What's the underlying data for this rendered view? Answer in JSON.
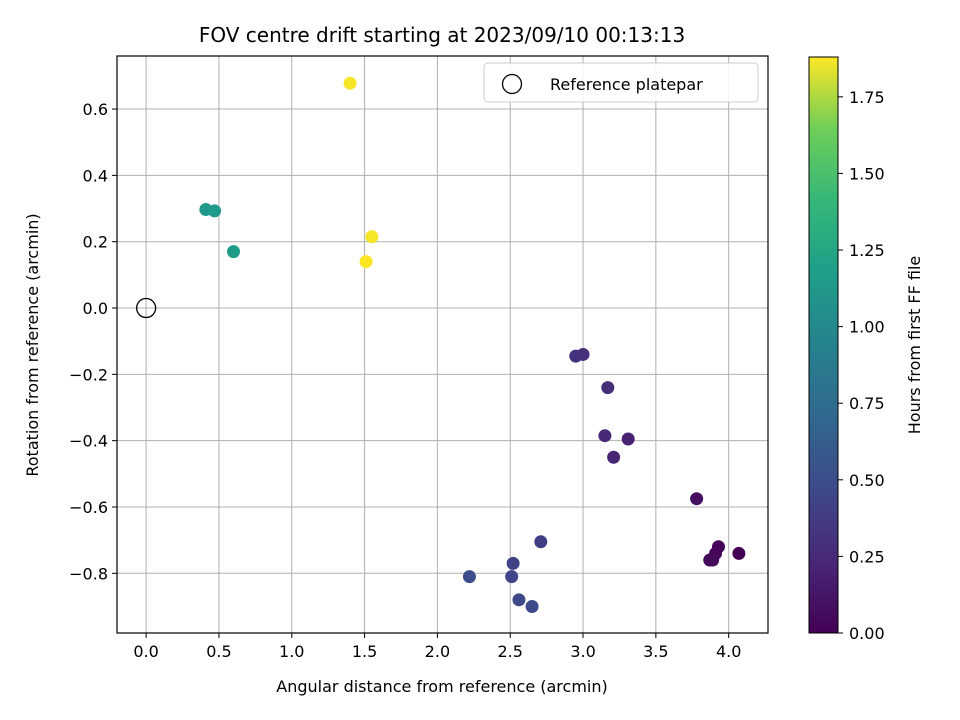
{
  "chart_data": {
    "type": "scatter",
    "title": "FOV centre drift starting at 2023/09/10 00:13:13",
    "xlabel": "Angular distance from reference (arcmin)",
    "ylabel": "Rotation from reference (arcmin)",
    "xlim": [
      -0.2,
      4.27
    ],
    "ylim": [
      -0.98,
      0.76
    ],
    "xticks": [
      0.0,
      0.5,
      1.0,
      1.5,
      2.0,
      2.5,
      3.0,
      3.5,
      4.0
    ],
    "xtick_labels": [
      "0.0",
      "0.5",
      "1.0",
      "1.5",
      "2.0",
      "2.5",
      "3.0",
      "3.5",
      "4.0"
    ],
    "yticks": [
      -0.8,
      -0.6,
      -0.4,
      -0.2,
      0.0,
      0.2,
      0.4,
      0.6
    ],
    "ytick_labels": [
      "−0.8",
      "−0.6",
      "−0.4",
      "−0.2",
      "0.0",
      "0.2",
      "0.4",
      "0.6"
    ],
    "grid": true,
    "legend": {
      "position": "top-right",
      "entries": [
        {
          "label": "Reference platepar",
          "marker": "open-circle",
          "color": "#000000"
        }
      ]
    },
    "reference_point": {
      "x": 0.0,
      "y": 0.0
    },
    "colorbar": {
      "label": "Hours from first FF file",
      "colormap": "viridis",
      "range": [
        0.0,
        1.88
      ],
      "ticks": [
        0.0,
        0.25,
        0.5,
        0.75,
        1.0,
        1.25,
        1.5,
        1.75
      ],
      "tick_labels": [
        "0.00",
        "0.25",
        "0.50",
        "0.75",
        "1.00",
        "1.25",
        "1.50",
        "1.75"
      ]
    },
    "points": [
      {
        "x": 4.07,
        "y": -0.74,
        "hours": 0.0
      },
      {
        "x": 3.93,
        "y": -0.72,
        "hours": 0.02
      },
      {
        "x": 3.91,
        "y": -0.74,
        "hours": 0.03
      },
      {
        "x": 3.89,
        "y": -0.76,
        "hours": 0.04
      },
      {
        "x": 3.87,
        "y": -0.76,
        "hours": 0.05
      },
      {
        "x": 3.78,
        "y": -0.575,
        "hours": 0.08
      },
      {
        "x": 3.31,
        "y": -0.395,
        "hours": 0.2
      },
      {
        "x": 3.21,
        "y": -0.45,
        "hours": 0.22
      },
      {
        "x": 3.15,
        "y": -0.385,
        "hours": 0.24
      },
      {
        "x": 3.17,
        "y": -0.24,
        "hours": 0.26
      },
      {
        "x": 3.0,
        "y": -0.14,
        "hours": 0.28
      },
      {
        "x": 2.95,
        "y": -0.145,
        "hours": 0.3
      },
      {
        "x": 2.71,
        "y": -0.705,
        "hours": 0.4
      },
      {
        "x": 2.52,
        "y": -0.77,
        "hours": 0.43
      },
      {
        "x": 2.51,
        "y": -0.81,
        "hours": 0.45
      },
      {
        "x": 2.56,
        "y": -0.88,
        "hours": 0.47
      },
      {
        "x": 2.65,
        "y": -0.9,
        "hours": 0.48
      },
      {
        "x": 2.22,
        "y": -0.81,
        "hours": 0.5
      },
      {
        "x": 0.41,
        "y": 0.297,
        "hours": 1.13
      },
      {
        "x": 0.47,
        "y": 0.293,
        "hours": 1.14
      },
      {
        "x": 0.6,
        "y": 0.17,
        "hours": 1.16
      },
      {
        "x": 1.4,
        "y": 0.678,
        "hours": 1.87
      },
      {
        "x": 1.55,
        "y": 0.215,
        "hours": 1.87
      },
      {
        "x": 1.51,
        "y": 0.14,
        "hours": 1.88
      }
    ]
  }
}
